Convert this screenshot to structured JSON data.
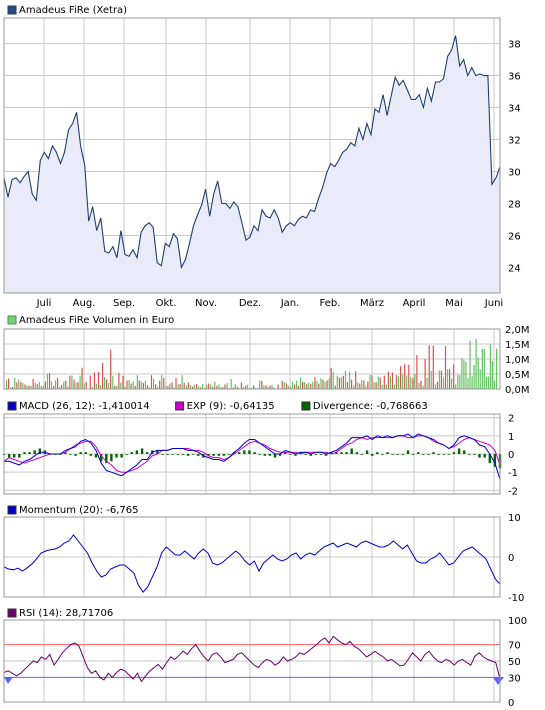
{
  "chart_data": [
    {
      "type": "area",
      "title": "Amadeus FiRe (Xetra)",
      "x_tick_labels": [
        "Juli",
        "Aug.",
        "Sep.",
        "Okt.",
        "Nov.",
        "Dez.",
        "Jan.",
        "Feb.",
        "März",
        "April",
        "Mai",
        "Juni"
      ],
      "y_tick_labels": [
        "24",
        "26",
        "28",
        "30",
        "32",
        "34",
        "36",
        "38"
      ],
      "ylim": [
        22.4,
        39.6
      ],
      "grid": true,
      "colors": {
        "line": "#1f3f6f",
        "fill": "#e9ecf8",
        "legend": "#2a4a7f"
      },
      "series": [
        {
          "name": "Amadeus FiRe (Xetra)",
          "y": [
            29.6,
            28.4,
            29.5,
            29.6,
            29.3,
            29.7,
            30.0,
            28.6,
            28.2,
            30.7,
            31.2,
            30.8,
            31.6,
            31.2,
            30.5,
            31.2,
            32.6,
            33.0,
            33.7,
            31.6,
            30.4,
            26.9,
            27.8,
            26.3,
            27.1,
            25.0,
            24.9,
            25.3,
            24.6,
            26.3,
            24.8,
            24.7,
            25.1,
            24.6,
            26.2,
            26.6,
            26.8,
            26.5,
            24.3,
            24.1,
            25.5,
            25.3,
            26.1,
            25.8,
            24.0,
            24.5,
            25.5,
            26.6,
            27.3,
            27.9,
            28.9,
            27.2,
            28.6,
            29.4,
            28.0,
            28.0,
            27.7,
            28.1,
            27.8,
            26.8,
            25.7,
            25.9,
            26.6,
            26.3,
            27.6,
            27.2,
            27.1,
            27.6,
            27.1,
            26.2,
            26.6,
            26.8,
            26.6,
            27.0,
            27.2,
            27.1,
            27.6,
            27.5,
            28.3,
            29.0,
            29.9,
            30.5,
            30.3,
            30.7,
            31.2,
            31.4,
            31.8,
            31.6,
            32.7,
            32.0,
            33.0,
            32.3,
            33.9,
            33.7,
            34.8,
            33.5,
            34.7,
            35.9,
            35.4,
            35.7,
            35.1,
            34.5,
            34.5,
            34.8,
            34.0,
            35.2,
            34.4,
            35.6,
            35.6,
            35.8,
            37.2,
            37.6,
            38.5,
            36.6,
            37.0,
            36.0,
            36.5,
            36.0,
            36.1,
            36.0,
            36.0,
            29.2,
            29.6,
            30.3
          ]
        }
      ]
    },
    {
      "type": "bar",
      "title": "Amadeus FiRe Volumen in Euro",
      "y_tick_labels": [
        "0,0M",
        "0,5M",
        "1,0M",
        "1,5M",
        "2,0M"
      ],
      "ylim": [
        0,
        2.0
      ],
      "colors": {
        "up": "#5fc45f",
        "down": "#d9534f",
        "legend": "#7bcf7b"
      },
      "series": [
        {
          "name": "up",
          "values": [
            0.29,
            0.06,
            0.37,
            0.32,
            0.2,
            0.12,
            0.11,
            0.2,
            0.24,
            0.1,
            0.5,
            0.26,
            0.29,
            0.08,
            0.25,
            0.08,
            0.45,
            0.21,
            0.44,
            0.19,
            0.01,
            0.07,
            0.18,
            0.13,
            0.4,
            0.2,
            0.43,
            0.11,
            0.21,
            0.07,
            0.3,
            0.26,
            0.46,
            0.25,
            0.27,
            0.05,
            0.34,
            0.08,
            0.47,
            0.12,
            0.18,
            0.05,
            0.16,
            0.46,
            0.11,
            0.14,
            0.14,
            0.1,
            0.16,
            0.14,
            0.15,
            0.25,
            0.15,
            0.07,
            0.2,
            0.33,
            0.16,
            0.03,
            0.06,
            0.14,
            0.04,
            0.04,
            0.28,
            0.12,
            0.08,
            0.14,
            0.0,
            0.03,
            0.23,
            0.11,
            0.24,
            0.28,
            0.38,
            0.23,
            0.21,
            0.24,
            0.27,
            0.36,
            0.24,
            0.35,
            0.56,
            0.44,
            0.39,
            0.61,
            0.57,
            0.11,
            0.22,
            0.3,
            0.11,
            0.47,
            0.23,
            0.42,
            0.14,
            0.15,
            0.42,
            0.14,
            0.42,
            0.48,
            0.45,
            0.4,
            0.51,
            0.2,
            0.11,
            0.38,
            0.6,
            0.15,
            0.62,
            0.38,
            0.66,
            0.35,
            0.15,
            0.47,
            0.46,
            1.03,
            0.97,
            0.9,
            0.36,
            1.61,
            0.43,
            0.8,
            1.67,
            1.05,
            0.66,
            1.34,
            1.33,
            0.4,
            0.42,
            1.49,
            0.93,
            0.27,
            1.34
          ]
        },
        {
          "name": "down",
          "values": [
            0.35,
            0.07,
            0.22,
            0.24,
            0.15,
            0.11,
            0.34,
            0.16,
            0.09,
            0.25,
            0.53,
            0.1,
            0.37,
            0.14,
            0.28,
            0.44,
            0.31,
            0.23,
            0.71,
            0.23,
            0.45,
            0.55,
            0.57,
            0.87,
            0.32,
            1.31,
            0.11,
            0.54,
            0.44,
            0.28,
            0.18,
            0.1,
            0.28,
            0.2,
            0.13,
            0.46,
            0.16,
            0.28,
            0.37,
            0.1,
            0.22,
            0.37,
            0.16,
            0.2,
            0.22,
            0.08,
            0.16,
            0.06,
            0.03,
            0.18,
            0.08,
            0.1,
            0.05,
            0.15,
            0.03,
            0.05,
            0.08,
            0.21,
            0.11,
            0.03,
            0.12,
            0.03,
            0.27,
            0.12,
            0.11,
            0.05,
            0.15,
            0.27,
            0.19,
            0.07,
            0.15,
            0.1,
            0.24,
            0.16,
            0.17,
            0.39,
            0.18,
            0.31,
            0.29,
            0.7,
            0.11,
            0.37,
            0.44,
            0.23,
            0.31,
            0.59,
            0.18,
            0.28,
            0.25,
            0.46,
            0.22,
            0.38,
            0.44,
            0.58,
            0.55,
            0.46,
            0.76,
            0.83,
            0.81,
            0.36,
            1.13,
            0.27,
            1.01,
            1.46,
            1.45,
            0.24,
            0.61,
            1.44,
            0.66,
            0.82
          ]
        }
      ]
    },
    {
      "type": "line",
      "title": "MACD",
      "y_tick_labels": [
        "-2",
        "-1",
        "0",
        "1",
        "2"
      ],
      "ylim": [
        -2.2,
        2.2
      ],
      "legend": [
        {
          "label": "MACD (26, 12): -1,410014",
          "color": "#0000cc"
        },
        {
          "label": "EXP (9): -0,64135",
          "color": "#cc00cc"
        },
        {
          "label": "Divergence: -0,768663",
          "color": "#006600"
        }
      ],
      "series": [
        {
          "name": "MACD",
          "y": [
            -0.4,
            -0.4,
            -0.5,
            -0.6,
            -0.4,
            -0.3,
            -0.1,
            0.1,
            0.1,
            0.0,
            0.0,
            0.0,
            0.2,
            0.3,
            0.4,
            0.7,
            0.8,
            0.6,
            0.2,
            -0.5,
            -0.9,
            -1.0,
            -1.1,
            -1.2,
            -1.0,
            -0.8,
            -0.6,
            -0.3,
            -0.3,
            0.1,
            0.2,
            0.2,
            0.2,
            0.3,
            0.3,
            0.3,
            0.2,
            0.2,
            0.1,
            -0.1,
            -0.2,
            -0.3,
            -0.3,
            -0.4,
            -0.2,
            0.1,
            0.3,
            0.6,
            0.8,
            0.8,
            0.6,
            0.4,
            0.2,
            0.0,
            0.0,
            0.2,
            0.1,
            0.0,
            0.1,
            0.1,
            0.0,
            0.1,
            0.1,
            0.0,
            0.1,
            0.2,
            0.4,
            0.6,
            0.9,
            0.9,
            0.9,
            1.0,
            0.8,
            1.0,
            0.9,
            1.0,
            0.9,
            1.0,
            1.0,
            1.1,
            0.9,
            1.1,
            1.0,
            0.9,
            0.8,
            0.6,
            0.5,
            0.3,
            0.5,
            0.9,
            1.0,
            0.9,
            0.8,
            0.5,
            0.4,
            0.0,
            -0.5,
            -1.4
          ]
        },
        {
          "name": "EXP",
          "y": [
            -0.4,
            -0.2,
            -0.3,
            -0.4,
            -0.5,
            -0.4,
            -0.3,
            -0.2,
            -0.1,
            0.0,
            0.0,
            0.0,
            0.1,
            0.3,
            0.5,
            0.6,
            0.7,
            0.7,
            0.4,
            -0.1,
            -0.4,
            -0.6,
            -0.9,
            -1.0,
            -1.0,
            -0.9,
            -0.8,
            -0.6,
            -0.4,
            -0.1,
            0.0,
            0.2,
            0.2,
            0.3,
            0.3,
            0.3,
            0.3,
            0.2,
            0.2,
            0.1,
            -0.1,
            -0.2,
            -0.2,
            -0.3,
            -0.2,
            0.0,
            0.2,
            0.4,
            0.6,
            0.7,
            0.6,
            0.5,
            0.3,
            0.2,
            0.1,
            0.1,
            0.1,
            0.1,
            0.0,
            0.1,
            0.1,
            0.1,
            0.1,
            0.1,
            0.0,
            0.1,
            0.3,
            0.5,
            0.6,
            0.8,
            0.9,
            0.8,
            0.9,
            0.9,
            0.9,
            0.9,
            0.9,
            1.0,
            1.0,
            0.9,
            0.9,
            1.0,
            1.0,
            0.9,
            0.7,
            0.6,
            0.5,
            0.3,
            0.4,
            0.6,
            0.8,
            0.9,
            0.8,
            0.7,
            0.6,
            0.5,
            0.2,
            -0.6
          ]
        }
      ],
      "divergence": [
        0.0,
        -0.2,
        -0.2,
        -0.2,
        0.1,
        0.1,
        0.2,
        0.3,
        0.2,
        0.0,
        0.0,
        0.0,
        0.1,
        0.0,
        -0.1,
        0.1,
        0.1,
        -0.1,
        -0.2,
        -0.4,
        -0.5,
        -0.4,
        -0.2,
        -0.2,
        0.0,
        0.1,
        0.2,
        0.3,
        0.1,
        0.2,
        0.2,
        0.0,
        0.0,
        0.0,
        0.0,
        0.0,
        -0.1,
        0.0,
        -0.1,
        -0.2,
        -0.1,
        -0.1,
        -0.1,
        -0.1,
        0.0,
        0.1,
        0.1,
        0.2,
        0.2,
        0.1,
        0.0,
        -0.1,
        -0.1,
        -0.2,
        -0.1,
        0.1,
        0.0,
        -0.1,
        0.1,
        0.0,
        -0.1,
        0.0,
        0.0,
        -0.1,
        0.1,
        0.1,
        0.1,
        0.1,
        0.3,
        0.1,
        0.0,
        0.2,
        -0.1,
        0.1,
        0.0,
        0.1,
        0.0,
        0.0,
        0.0,
        0.2,
        0.0,
        0.1,
        0.0,
        0.0,
        0.1,
        0.0,
        0.0,
        0.0,
        0.1,
        0.3,
        0.2,
        0.0,
        0.0,
        -0.2,
        -0.2,
        -0.5,
        -0.7,
        -0.8
      ]
    },
    {
      "type": "line",
      "title": "Momentum",
      "y_tick_labels": [
        "-10",
        "0",
        "10"
      ],
      "ylim": [
        -10,
        10
      ],
      "legend": [
        {
          "label": "Momentum (20): -6,765",
          "color": "#0000cc"
        }
      ],
      "series": [
        {
          "name": "Momentum",
          "y": [
            -2.5,
            -3.0,
            -3.2,
            -2.8,
            -3.5,
            -2.7,
            -1.8,
            -0.5,
            1.0,
            1.5,
            1.8,
            2.0,
            2.5,
            3.5,
            4.0,
            5.5,
            4.0,
            2.5,
            1.0,
            -1.5,
            -3.5,
            -5.0,
            -4.5,
            -3.0,
            -2.5,
            -2.0,
            -2.0,
            -3.0,
            -4.0,
            -7.0,
            -8.8,
            -7.5,
            -5.0,
            -2.5,
            1.0,
            2.5,
            1.5,
            0.5,
            0.5,
            1.5,
            0.5,
            -0.5,
            1.0,
            2.0,
            1.0,
            -1.5,
            -2.0,
            -1.5,
            -0.5,
            0.5,
            1.5,
            0.5,
            -1.0,
            -2.0,
            -1.0,
            -3.5,
            -1.5,
            -0.5,
            0.5,
            -0.5,
            -1.0,
            -0.5,
            0.5,
            1.0,
            -0.5,
            0.5,
            1.0,
            0.5,
            1.5,
            2.5,
            3.0,
            3.5,
            2.5,
            3.0,
            3.5,
            3.0,
            2.5,
            3.5,
            4.0,
            3.5,
            3.0,
            2.5,
            2.5,
            3.0,
            4.0,
            3.0,
            2.0,
            3.0,
            1.0,
            -1.0,
            -1.5,
            -1.5,
            -0.5,
            0.0,
            1.0,
            -0.5,
            -2.0,
            -1.5,
            0.0,
            1.5,
            2.0,
            2.5,
            1.5,
            0.5,
            -0.5,
            -3.0,
            -5.5,
            -6.8
          ]
        }
      ]
    },
    {
      "type": "line",
      "title": "RSI",
      "y_tick_labels": [
        "0",
        "30",
        "50",
        "70",
        "100"
      ],
      "ylim": [
        0,
        100
      ],
      "reference_lines": [
        {
          "value": 70,
          "color": "#ff6060"
        },
        {
          "value": 30,
          "color": "#6060ff"
        }
      ],
      "legend": [
        {
          "label": "RSI (14): 28,71706",
          "color": "#6b006b"
        }
      ],
      "series": [
        {
          "name": "RSI",
          "y": [
            36,
            38,
            35,
            32,
            35,
            40,
            45,
            50,
            48,
            55,
            52,
            58,
            45,
            52,
            60,
            65,
            70,
            72,
            68,
            55,
            42,
            35,
            38,
            30,
            27,
            35,
            30,
            36,
            40,
            38,
            33,
            28,
            35,
            25,
            32,
            38,
            42,
            46,
            40,
            48,
            55,
            52,
            57,
            62,
            58,
            65,
            70,
            62,
            55,
            50,
            58,
            60,
            55,
            48,
            50,
            52,
            58,
            60,
            55,
            50,
            45,
            42,
            48,
            52,
            50,
            45,
            48,
            55,
            50,
            52,
            55,
            60,
            58,
            62,
            66,
            70,
            75,
            78,
            72,
            80,
            76,
            72,
            70,
            74,
            68,
            65,
            60,
            55,
            58,
            62,
            58,
            55,
            50,
            52,
            48,
            44,
            45,
            52,
            60,
            55,
            50,
            58,
            62,
            55,
            50,
            48,
            52,
            50,
            45,
            50,
            52,
            48,
            45,
            56,
            60,
            55,
            52,
            50,
            48,
            28
          ]
        }
      ]
    }
  ],
  "colors": {
    "grid": "#c9c9c9",
    "frame": "#999999",
    "rsi70": "#ff6060",
    "rsi30": "#6060ff",
    "axis_text": "#000000"
  }
}
